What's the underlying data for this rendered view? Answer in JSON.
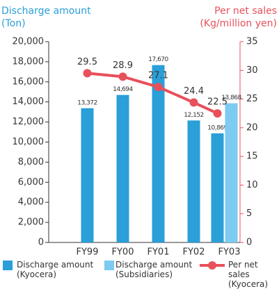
{
  "chart_data": {
    "type": "bar",
    "y_label": [
      "Discharge amount",
      "(Ton)"
    ],
    "y2_label": [
      "Per net sales",
      "(Kg/million yen)"
    ],
    "categories": [
      "FY99",
      "FY00",
      "FY01",
      "FY02",
      "FY03"
    ],
    "series": [
      {
        "name": "Discharge amount (Kyocera)",
        "color": "#2a9fd8",
        "values": [
          13372,
          14694,
          17670,
          12152,
          10869
        ],
        "value_labels": [
          "13,372",
          "14,694",
          "17,670",
          "12,152",
          "10,869"
        ]
      },
      {
        "name": "Discharge amount (Subsidiaries)",
        "color": "#7ccbf0",
        "values": [
          null,
          null,
          null,
          null,
          13868
        ],
        "value_labels": [
          null,
          null,
          null,
          null,
          "13,868"
        ]
      },
      {
        "name": "Per net sales (Kyocera)",
        "type": "line",
        "axis": "y2",
        "color": "#e8505b",
        "values": [
          29.5,
          28.9,
          27.1,
          24.4,
          22.5
        ]
      }
    ],
    "ylim": [
      0,
      20000
    ],
    "yticks": [
      0,
      {
        "value": 2000,
        "label": "2,000"
      },
      {
        "value": 4000,
        "label": "4,000"
      },
      {
        "value": 6000,
        "label": "6,000"
      },
      {
        "value": 8000,
        "label": "8,000"
      },
      {
        "value": 10000,
        "label": "10,000"
      },
      {
        "value": 12000,
        "label": "12,000"
      },
      {
        "value": 14000,
        "label": "14,000"
      },
      {
        "value": 16000,
        "label": "16,000"
      },
      {
        "value": 18000,
        "label": "18,000"
      },
      {
        "value": 20000,
        "label": "20,000"
      }
    ],
    "y2lim": [
      0,
      35
    ],
    "y2ticks": [
      0,
      5,
      10,
      15,
      20,
      25,
      30,
      35
    ]
  }
}
